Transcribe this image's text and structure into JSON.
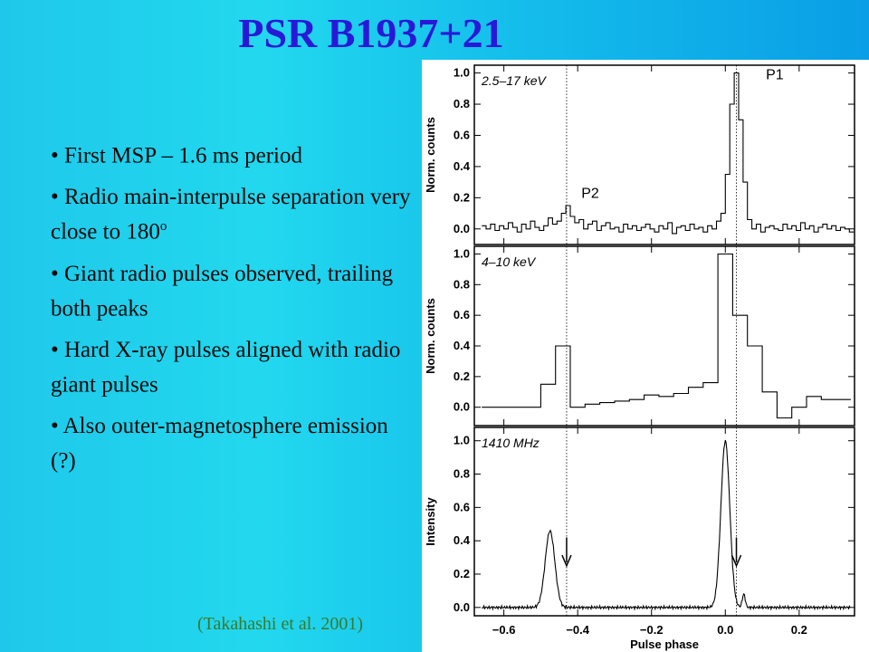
{
  "slide": {
    "title": "PSR B1937+21",
    "bullets": [
      {
        "text": "• First MSP – 1.6 ms period",
        "sup": ""
      },
      {
        "text": "• Radio main-interpulse separation very close to 180",
        "sup": "o"
      },
      {
        "text": "• Giant radio pulses observed, trailing both peaks",
        "sup": ""
      },
      {
        "text": "• Hard X-ray pulses aligned with radio giant pulses",
        "sup": ""
      },
      {
        "text": "• Also outer-magnetosphere emission (?)",
        "sup": ""
      }
    ],
    "citation": "(Takahashi et al. 2001)"
  },
  "chart_data": {
    "type": "line",
    "xlabel": "Pulse phase",
    "xlim": [
      -0.68,
      0.35
    ],
    "xticks": [
      -0.6,
      -0.4,
      -0.2,
      0.0,
      0.2
    ],
    "xtick_labels": [
      "−0.6",
      "−0.4",
      "−0.2",
      "0.0",
      "0.2"
    ],
    "reference_lines_x": [
      -0.43,
      0.03
    ],
    "panels": [
      {
        "label": "2.5–17 keV",
        "ylabel": "Norm. counts",
        "ylim": [
          -0.1,
          1.05
        ],
        "yticks": [
          0.0,
          0.2,
          0.4,
          0.6,
          0.8,
          1.0
        ],
        "ytick_labels": [
          "0.0",
          "0.2",
          "0.4",
          "0.6",
          "0.8",
          "1.0"
        ],
        "peak_labels": [
          {
            "text": "P1",
            "x": 0.11,
            "y": 0.96
          },
          {
            "text": "P2",
            "x": -0.39,
            "y": 0.2
          }
        ],
        "step_x": [
          -0.66,
          -0.648,
          -0.636,
          -0.624,
          -0.612,
          -0.6,
          -0.588,
          -0.576,
          -0.564,
          -0.552,
          -0.54,
          -0.528,
          -0.516,
          -0.504,
          -0.492,
          -0.48,
          -0.468,
          -0.456,
          -0.444,
          -0.432,
          -0.42,
          -0.408,
          -0.396,
          -0.384,
          -0.372,
          -0.36,
          -0.348,
          -0.336,
          -0.324,
          -0.312,
          -0.3,
          -0.288,
          -0.276,
          -0.264,
          -0.252,
          -0.24,
          -0.228,
          -0.216,
          -0.204,
          -0.192,
          -0.18,
          -0.168,
          -0.156,
          -0.144,
          -0.132,
          -0.12,
          -0.108,
          -0.096,
          -0.084,
          -0.072,
          -0.06,
          -0.048,
          -0.036,
          -0.024,
          -0.012,
          0.0,
          0.012,
          0.024,
          0.036,
          0.048,
          0.06,
          0.072,
          0.084,
          0.096,
          0.108,
          0.12,
          0.132,
          0.144,
          0.156,
          0.168,
          0.18,
          0.192,
          0.204,
          0.216,
          0.228,
          0.24,
          0.252,
          0.264,
          0.276,
          0.288,
          0.3,
          0.312,
          0.324,
          0.336
        ],
        "values": [
          0.02,
          0.0,
          0.03,
          -0.01,
          0.02,
          0.0,
          0.04,
          0.01,
          -0.02,
          0.03,
          0.0,
          0.05,
          0.01,
          -0.01,
          0.02,
          0.07,
          0.03,
          0.05,
          0.1,
          0.15,
          0.08,
          0.04,
          0.06,
          0.0,
          0.03,
          0.05,
          -0.01,
          0.02,
          0.04,
          0.0,
          0.01,
          -0.02,
          0.03,
          0.0,
          0.02,
          -0.01,
          0.01,
          0.03,
          0.0,
          -0.02,
          0.02,
          0.0,
          0.04,
          -0.03,
          0.01,
          0.02,
          -0.01,
          0.03,
          0.0,
          0.01,
          -0.02,
          0.02,
          0.0,
          0.05,
          0.1,
          0.35,
          0.8,
          1.0,
          0.7,
          0.3,
          0.06,
          0.0,
          0.03,
          -0.02,
          0.01,
          0.02,
          0.0,
          -0.01,
          0.03,
          0.0,
          0.02,
          -0.01,
          0.04,
          0.0,
          0.02,
          -0.02,
          0.01,
          0.03,
          0.0,
          0.02,
          -0.01,
          0.01,
          0.0,
          -0.02
        ]
      },
      {
        "label": "4–10 keV",
        "ylabel": "Norm. counts",
        "ylim": [
          -0.12,
          1.05
        ],
        "yticks": [
          0.0,
          0.2,
          0.4,
          0.6,
          0.8,
          1.0
        ],
        "ytick_labels": [
          "0.0",
          "0.2",
          "0.4",
          "0.6",
          "0.8",
          "1.0"
        ],
        "step_x": [
          -0.66,
          -0.62,
          -0.58,
          -0.54,
          -0.5,
          -0.46,
          -0.42,
          -0.38,
          -0.34,
          -0.3,
          -0.26,
          -0.22,
          -0.18,
          -0.14,
          -0.1,
          -0.06,
          -0.02,
          0.02,
          0.06,
          0.1,
          0.14,
          0.18,
          0.22,
          0.26,
          0.3
        ],
        "values": [
          0.0,
          0.0,
          0.0,
          0.0,
          0.15,
          0.4,
          0.0,
          0.02,
          0.03,
          0.04,
          0.05,
          0.08,
          0.07,
          0.09,
          0.13,
          0.16,
          1.0,
          0.6,
          0.4,
          0.1,
          -0.07,
          0.0,
          0.07,
          0.05,
          0.05
        ]
      },
      {
        "label": "1410 MHz",
        "ylabel": "Intensity",
        "ylim": [
          -0.05,
          1.08
        ],
        "yticks": [
          0.0,
          0.2,
          0.4,
          0.6,
          0.8,
          1.0
        ],
        "ytick_labels": [
          "0.0",
          "0.2",
          "0.4",
          "0.6",
          "0.8",
          "1.0"
        ],
        "interpulse": {
          "center": -0.475,
          "height": 0.46,
          "width": 0.013
        },
        "main_pulse": {
          "center": 0.0,
          "height": 1.0,
          "width": 0.012
        },
        "arrows_x": [
          -0.43,
          0.03
        ]
      }
    ]
  }
}
